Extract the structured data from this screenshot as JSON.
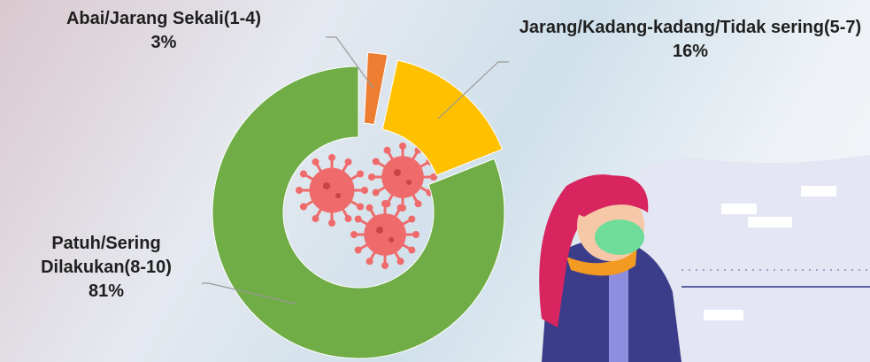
{
  "chart_data": {
    "type": "donut",
    "categories": [
      "Abai/Jarang Sekali(1-4)",
      "Jarang/Kadang-kadang/Tidak sering(5-7)",
      "Patuh/Sering Dilakukan(8-10)"
    ],
    "values": [
      3,
      16,
      81
    ],
    "value_labels": [
      "3%",
      "16%",
      "81%"
    ],
    "colors": [
      "#ed7d31",
      "#ffc000",
      "#70ad47"
    ]
  }
}
